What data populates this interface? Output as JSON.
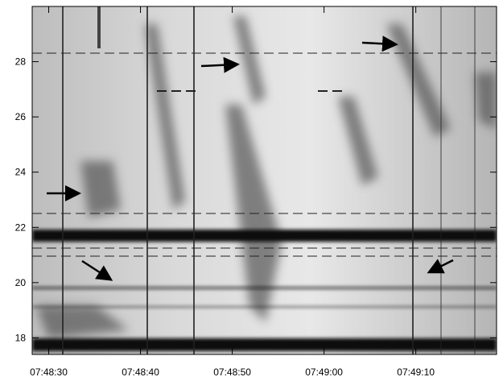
{
  "chart_data": {
    "type": "spectrogram",
    "xlim": [
      28108.2,
      28158.8
    ],
    "xticks": [
      {
        "value": 28110,
        "label": "07:48:30"
      },
      {
        "value": 28120,
        "label": "07:48:40"
      },
      {
        "value": 28130,
        "label": "07:48:50"
      },
      {
        "value": 28140,
        "label": "07:49:00"
      },
      {
        "value": 28150,
        "label": "07:49:10"
      }
    ],
    "ylim": [
      17.4,
      30
    ],
    "yticks": [
      18,
      20,
      22,
      24,
      26,
      28
    ]
  }
}
